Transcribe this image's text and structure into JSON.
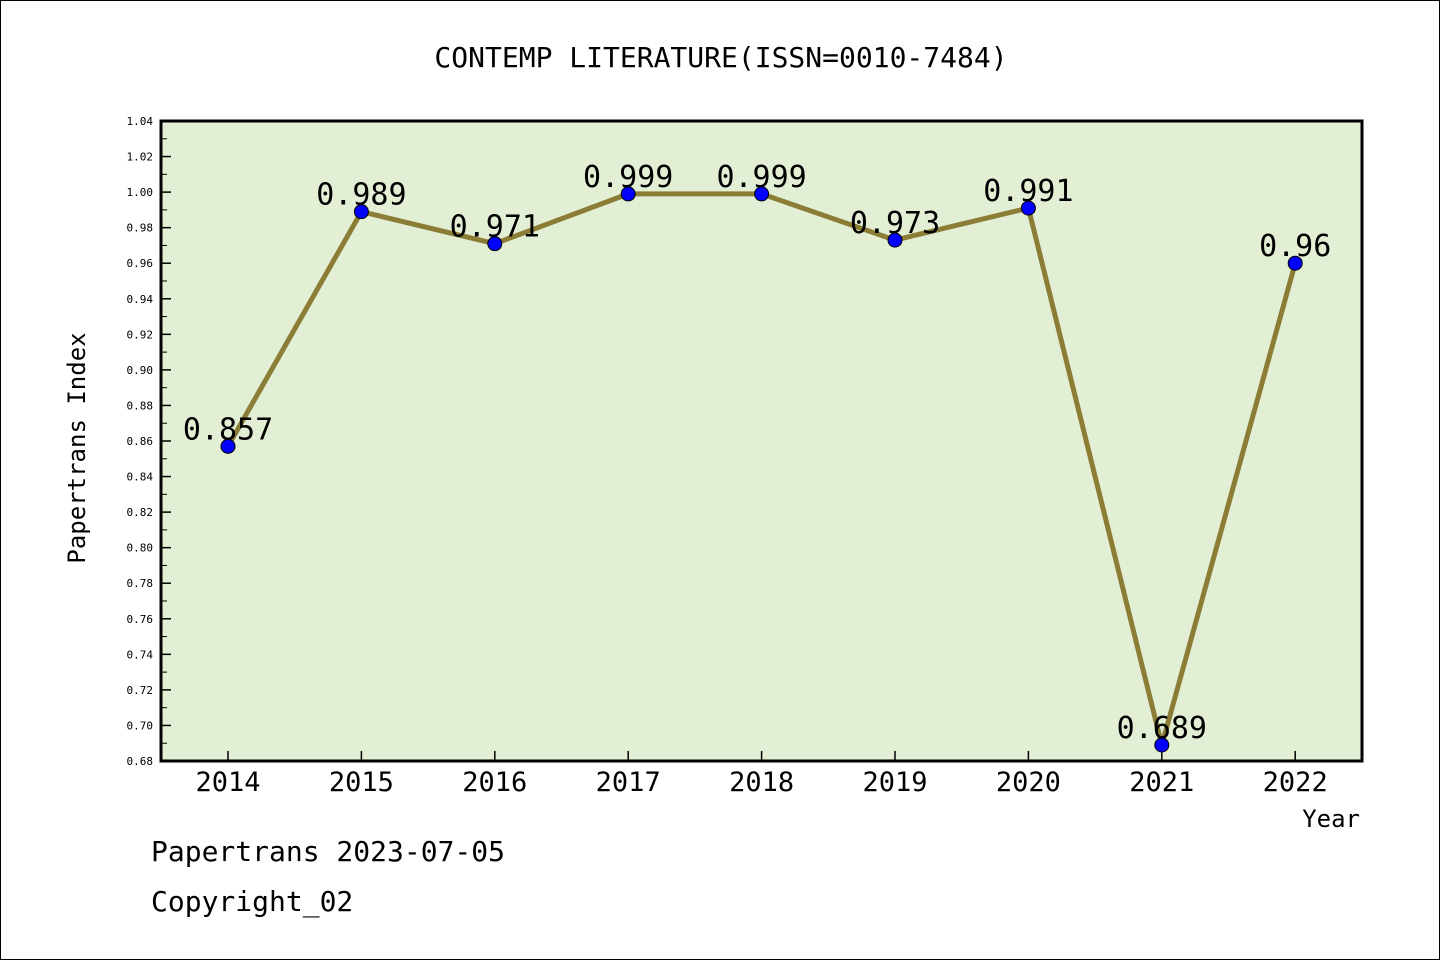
{
  "chart_data": {
    "type": "line",
    "title": "CONTEMP LITERATURE(ISSN=0010-7484)",
    "xlabel": "Year",
    "ylabel": "Papertrans Index",
    "categories": [
      "2014",
      "2015",
      "2016",
      "2017",
      "2018",
      "2019",
      "2020",
      "2021",
      "2022"
    ],
    "values": [
      0.857,
      0.989,
      0.971,
      0.999,
      0.999,
      0.973,
      0.991,
      0.689,
      0.96
    ],
    "data_labels": [
      "0.857",
      "0.989",
      "0.971",
      "0.999",
      "0.999",
      "0.973",
      "0.991",
      "0.689",
      "0.96"
    ],
    "ylim": [
      0.68,
      1.04
    ],
    "y_ticks": [
      "0.68",
      "0.70",
      "0.72",
      "0.74",
      "0.76",
      "0.78",
      "0.80",
      "0.82",
      "0.84",
      "0.86",
      "0.88",
      "0.90",
      "0.92",
      "0.94",
      "0.96",
      "0.98",
      "1.00",
      "1.02",
      "1.04"
    ],
    "grid": false,
    "legend": "none",
    "colors": {
      "plot_background": "#e2efd5",
      "line": "#8b7d35",
      "marker": "#0000ff",
      "axis": "#000000"
    }
  },
  "footer": {
    "line1": "Papertrans 2023-07-05",
    "line2": "Copyright_02"
  }
}
